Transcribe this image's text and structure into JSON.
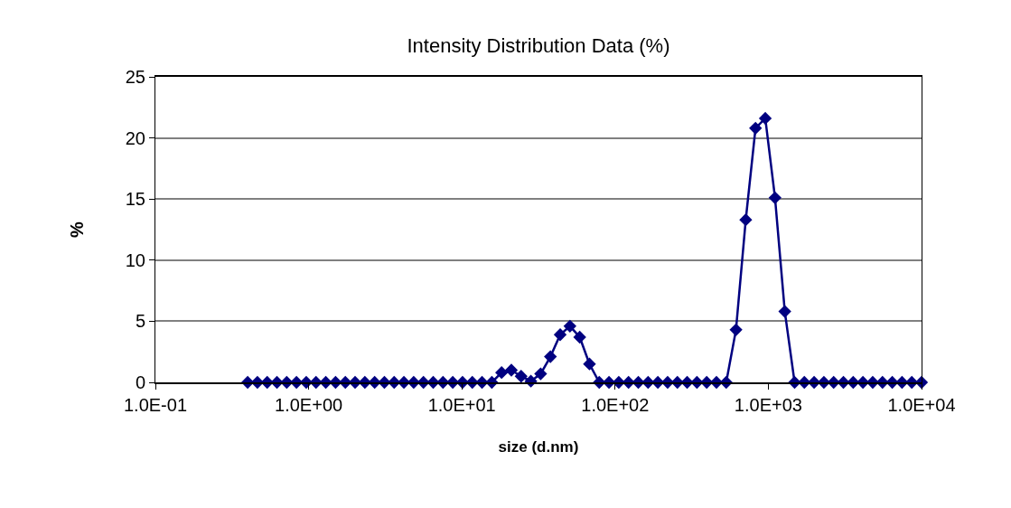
{
  "chart_data": {
    "type": "line",
    "title": "Intensity Distribution Data (%)",
    "xlabel": "size (d.nm)",
    "ylabel": "%",
    "x": [
      0.4,
      0.4632,
      0.5365,
      0.6213,
      0.7195,
      0.8332,
      0.9649,
      1.117,
      1.294,
      1.499,
      1.736,
      2.01,
      2.328,
      2.696,
      3.122,
      3.615,
      4.187,
      4.849,
      5.615,
      6.503,
      7.531,
      8.721,
      10.1,
      11.7,
      13.54,
      15.69,
      18.17,
      21.04,
      24.36,
      28.21,
      32.67,
      37.84,
      43.82,
      50.75,
      58.77,
      68.06,
      78.82,
      91.28,
      105.7,
      122.4,
      141.8,
      164.2,
      190.1,
      220.2,
      255,
      295.3,
      342,
      396.1,
      458.7,
      531.2,
      615.1,
      712.4,
      825,
      955.4,
      1106,
      1281,
      1484,
      1718,
      1990,
      2305,
      2669,
      3091,
      3580,
      4145,
      4801,
      5560,
      6439,
      7456,
      8635,
      10000
    ],
    "series": [
      {
        "color": "#000080",
        "values": [
          0,
          0,
          0,
          0,
          0,
          0,
          0,
          0,
          0,
          0,
          0,
          0,
          0,
          0,
          0,
          0,
          0,
          0,
          0,
          0,
          0,
          0,
          0,
          0,
          0,
          0,
          0.8,
          1.0,
          0.5,
          0.1,
          0.7,
          2.1,
          3.9,
          4.6,
          3.7,
          1.5,
          0,
          0,
          0,
          0,
          0,
          0,
          0,
          0,
          0,
          0,
          0,
          0,
          0,
          0,
          4.3,
          13.3,
          20.8,
          21.6,
          15.1,
          5.8,
          0,
          0,
          0,
          0,
          0,
          0,
          0,
          0,
          0,
          0,
          0,
          0,
          0,
          0
        ]
      }
    ],
    "log": "x",
    "xlim": [
      0.1,
      10000
    ],
    "xticks": [
      {
        "value": 0.1,
        "label": "1.0E-01"
      },
      {
        "value": 1,
        "label": "1.0E+00"
      },
      {
        "value": 10,
        "label": "1.0E+01"
      },
      {
        "value": 100,
        "label": "1.0E+02"
      },
      {
        "value": 1000,
        "label": "1.0E+03"
      },
      {
        "value": 10000,
        "label": "1.0E+04"
      }
    ],
    "ylim": [
      0,
      25
    ],
    "yticks": [
      0,
      5,
      10,
      15,
      20,
      25
    ],
    "grid": "y",
    "legend": false,
    "marker": "diamond",
    "line_style": "solid"
  }
}
